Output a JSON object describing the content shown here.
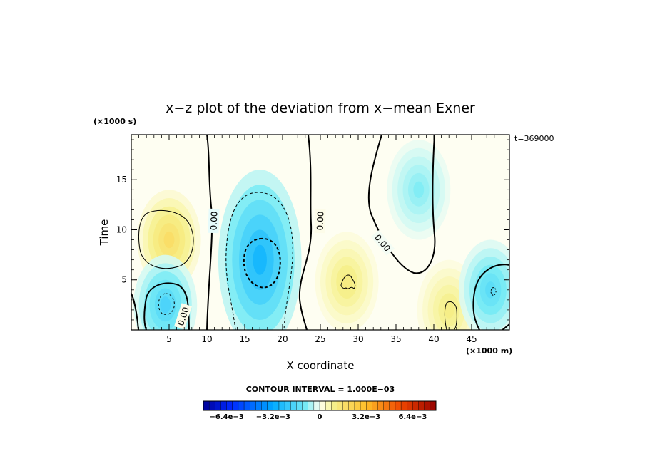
{
  "chart_data": {
    "type": "heatmap",
    "title": "x−z plot of the deviation from x−mean Exner",
    "xlabel": "X coordinate",
    "ylabel": "Time",
    "x_unit": "(×1000 m)",
    "y_unit": "(×1000 s)",
    "time_stamp": "t=369000",
    "xlim": [
      0,
      50
    ],
    "ylim": [
      0,
      19.5
    ],
    "x_ticks": [
      5,
      10,
      15,
      20,
      25,
      30,
      35,
      40,
      45
    ],
    "x_tick_labels": [
      "5",
      "10",
      "15",
      "20",
      "25",
      "30",
      "35",
      "40",
      "45"
    ],
    "y_ticks": [
      5,
      10,
      15
    ],
    "y_tick_labels": [
      "5",
      "10",
      "15"
    ],
    "contour_interval_label": "CONTOUR INTERVAL = 1.000E−03",
    "contour_interval": 0.001,
    "zero_contour_label": "0.00",
    "colorbar": {
      "range": [
        -0.008,
        0.008
      ],
      "tick_labels": [
        "−6.4e−3",
        "−3.2e−3",
        "0",
        "3.2e−3",
        "6.4e−3"
      ],
      "tick_values": [
        -0.0064,
        -0.0032,
        0,
        0.0032,
        0.0064
      ]
    },
    "features": [
      {
        "kind": "positive",
        "x": 5,
        "y": 9,
        "peak": 0.0018
      },
      {
        "kind": "negative",
        "x": 4.5,
        "y": 2.5,
        "peak": -0.0018
      },
      {
        "kind": "negative",
        "x": 17,
        "y": 7,
        "peak": -0.0028
      },
      {
        "kind": "negative",
        "x": 38,
        "y": 14,
        "peak": -0.0009
      },
      {
        "kind": "positive",
        "x": 28.5,
        "y": 4.8,
        "peak": 0.0012
      },
      {
        "kind": "positive",
        "x": 42,
        "y": 2,
        "peak": 0.0011
      },
      {
        "kind": "negative",
        "x": 47.5,
        "y": 4,
        "peak": -0.0015
      }
    ]
  }
}
